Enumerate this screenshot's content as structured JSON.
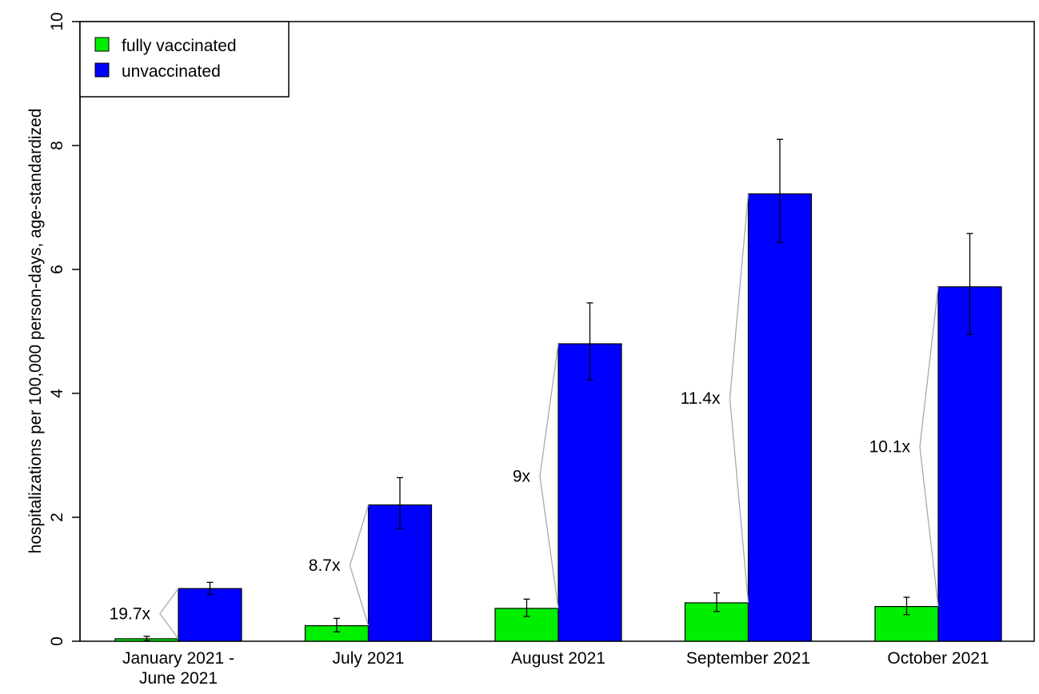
{
  "chart_data": {
    "type": "bar",
    "title": "",
    "xlabel": "",
    "ylabel": "hospitalizations per 100,000 person-days, age-standardized",
    "ylim": [
      0,
      10
    ],
    "yticks": [
      0,
      2,
      4,
      6,
      8,
      10
    ],
    "grid": false,
    "legend_position": "top-left",
    "categories": [
      [
        "January 2021 -",
        "June 2021"
      ],
      [
        "July 2021"
      ],
      [
        "August 2021"
      ],
      [
        "September 2021"
      ],
      [
        "October 2021"
      ]
    ],
    "series": [
      {
        "name": "fully vaccinated",
        "color": "#00ee00",
        "values": [
          0.04,
          0.25,
          0.53,
          0.62,
          0.56
        ],
        "error_low": [
          0.01,
          0.15,
          0.4,
          0.48,
          0.43
        ],
        "error_high": [
          0.08,
          0.37,
          0.68,
          0.78,
          0.71
        ]
      },
      {
        "name": "unvaccinated",
        "color": "#0000ff",
        "values": [
          0.85,
          2.2,
          4.8,
          7.22,
          5.72
        ],
        "error_low": [
          0.76,
          1.82,
          4.22,
          6.44,
          4.95
        ],
        "error_high": [
          0.95,
          2.64,
          5.46,
          8.1,
          6.58
        ]
      }
    ],
    "ratio_labels": [
      "19.7x",
      "8.7x",
      "9x",
      "11.4x",
      "10.1x"
    ],
    "ratio_connector_color": "#aaaaaa"
  }
}
